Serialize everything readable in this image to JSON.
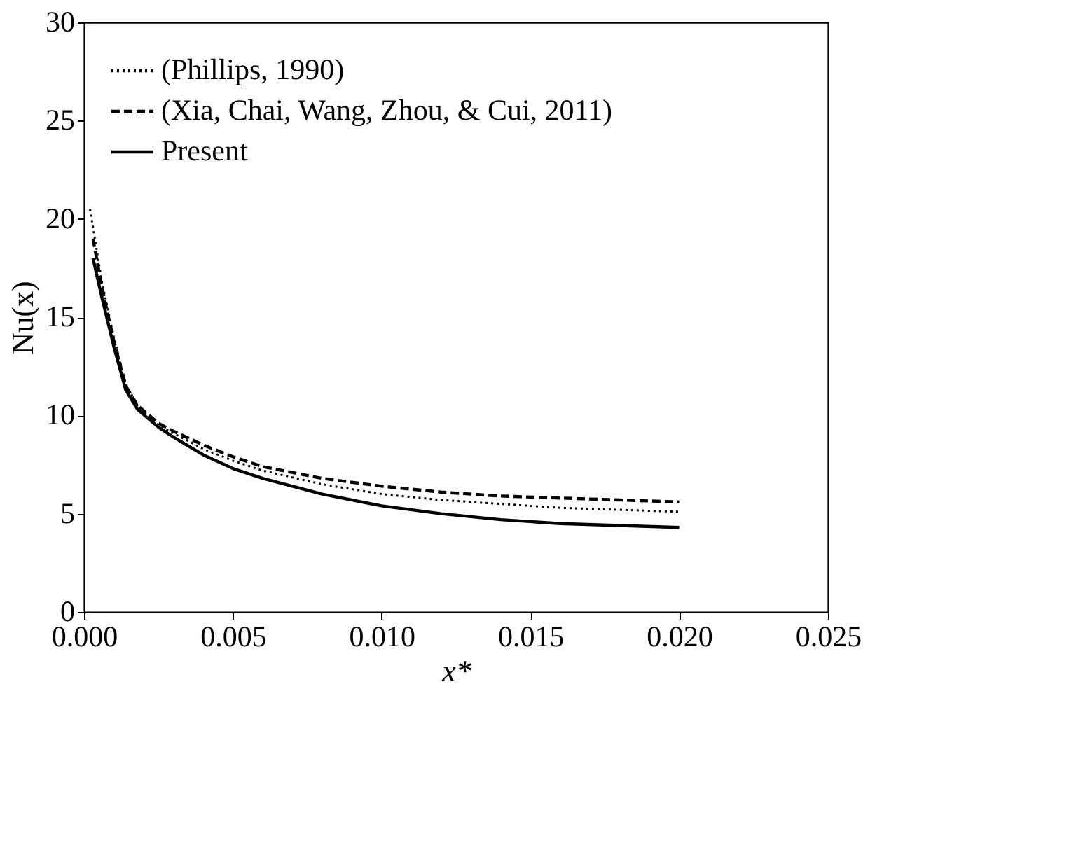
{
  "chart_data": {
    "type": "line",
    "xlabel": "x*",
    "ylabel": "Nu(x)",
    "xlim": [
      0,
      0.025
    ],
    "ylim": [
      0,
      30
    ],
    "xticks": [
      {
        "value": 0,
        "label": "0.000"
      },
      {
        "value": 0.005,
        "label": "0.005"
      },
      {
        "value": 0.01,
        "label": "0.010"
      },
      {
        "value": 0.015,
        "label": "0.015"
      },
      {
        "value": 0.02,
        "label": "0.020"
      },
      {
        "value": 0.025,
        "label": "0.025"
      }
    ],
    "yticks": [
      0,
      5,
      10,
      15,
      20,
      25,
      30
    ],
    "grid": false,
    "legend": "top left",
    "series": [
      {
        "name": "(Phillips, 1990)",
        "color": "#000000",
        "line_style": "dotted",
        "x": [
          0.0002,
          0.0006,
          0.001,
          0.0014,
          0.0018,
          0.0025,
          0.003,
          0.004,
          0.005,
          0.006,
          0.008,
          0.01,
          0.012,
          0.014,
          0.016,
          0.018,
          0.02
        ],
        "values": [
          20.5,
          16.8,
          14.0,
          11.6,
          10.5,
          9.5,
          9.1,
          8.3,
          7.7,
          7.2,
          6.5,
          6.0,
          5.7,
          5.5,
          5.3,
          5.2,
          5.1
        ]
      },
      {
        "name": "(Xia, Chai, Wang, Zhou, & Cui, 2011)",
        "color": "#000000",
        "line_style": "dashed",
        "x": [
          0.0003,
          0.0006,
          0.001,
          0.0014,
          0.0018,
          0.0025,
          0.003,
          0.004,
          0.005,
          0.006,
          0.008,
          0.01,
          0.012,
          0.014,
          0.016,
          0.018,
          0.02
        ],
        "values": [
          19.0,
          16.5,
          13.8,
          11.5,
          10.5,
          9.6,
          9.2,
          8.5,
          7.9,
          7.4,
          6.8,
          6.4,
          6.1,
          5.9,
          5.8,
          5.7,
          5.6
        ]
      },
      {
        "name": "Present",
        "color": "#000000",
        "line_style": "solid",
        "x": [
          0.0003,
          0.0006,
          0.001,
          0.0014,
          0.0018,
          0.0025,
          0.003,
          0.004,
          0.005,
          0.006,
          0.008,
          0.01,
          0.012,
          0.014,
          0.016,
          0.018,
          0.02
        ],
        "values": [
          18.0,
          16.0,
          13.5,
          11.3,
          10.3,
          9.4,
          8.9,
          8.0,
          7.3,
          6.8,
          6.0,
          5.4,
          5.0,
          4.7,
          4.5,
          4.4,
          4.3
        ]
      }
    ]
  }
}
